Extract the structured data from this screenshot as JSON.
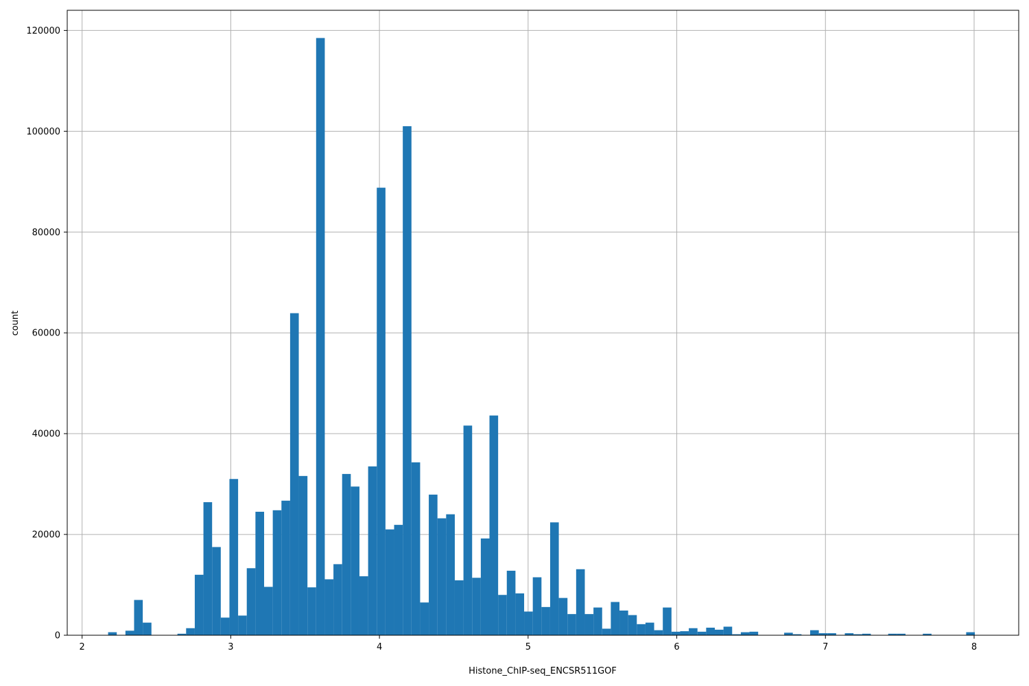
{
  "chart_data": {
    "type": "bar",
    "xlabel": "Histone_ChIP-seq_ENCSR511GOF",
    "ylabel": "count",
    "xlim": [
      1.9,
      8.3
    ],
    "ylim": [
      0,
      124000
    ],
    "grid": true,
    "x_ticks": [
      2,
      3,
      4,
      5,
      6,
      7,
      8
    ],
    "y_ticks": [
      0,
      20000,
      40000,
      60000,
      80000,
      100000,
      120000
    ],
    "bar_color": "#1f77b4",
    "bin_start": 2.0,
    "bin_width": 0.0583,
    "values": [
      0,
      0,
      0,
      600,
      0,
      900,
      7000,
      2500,
      0,
      0,
      0,
      300,
      1400,
      12000,
      26400,
      17500,
      3500,
      31000,
      3900,
      13300,
      24500,
      9600,
      24800,
      26700,
      63900,
      31600,
      9500,
      118500,
      11100,
      14100,
      32000,
      29500,
      11700,
      33500,
      88800,
      21000,
      21900,
      101000,
      34300,
      6500,
      27900,
      23200,
      24000,
      10900,
      41600,
      11400,
      19200,
      43600,
      8000,
      12800,
      8300,
      4700,
      11500,
      5600,
      22400,
      7400,
      4200,
      13100,
      4200,
      5500,
      1300,
      6600,
      4900,
      4000,
      2200,
      2500,
      1000,
      5500,
      700,
      800,
      1400,
      700,
      1500,
      1100,
      1700,
      200,
      600,
      700,
      0,
      0,
      0,
      500,
      200,
      0,
      1000,
      400,
      400,
      0,
      400,
      200,
      300,
      0,
      0,
      300,
      300,
      0,
      0,
      300,
      0,
      0,
      0,
      0,
      600
    ]
  }
}
